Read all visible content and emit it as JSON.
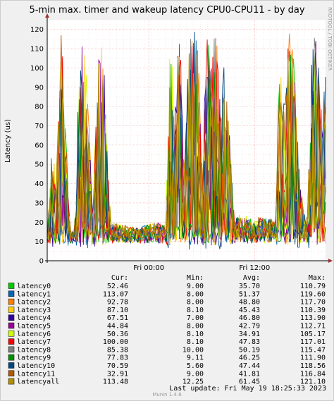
{
  "chart_data": {
    "type": "line",
    "title": "5-min max. timer and wakeup latency CPU0-CPU11 - by day",
    "ylabel": "Latency (us)",
    "ylim": [
      0,
      125
    ],
    "yticks": [
      0,
      10,
      20,
      30,
      40,
      50,
      60,
      70,
      80,
      90,
      100,
      110,
      120
    ],
    "xticks": [
      "Fri 00:00",
      "Fri 12:00"
    ],
    "grid": true,
    "watermark": "RRDTOOL / TOBI OETIKER",
    "legend_headers": {
      "cur": "Cur:",
      "min": "Min:",
      "avg": "Avg:",
      "max": "Max:"
    },
    "series": [
      {
        "name": "latency0",
        "color": "#00cc00",
        "cur": "52.46",
        "min": "9.00",
        "avg": "35.70",
        "max": "110.79"
      },
      {
        "name": "latency1",
        "color": "#0066b3",
        "cur": "113.07",
        "min": "8.00",
        "avg": "51.37",
        "max": "119.60"
      },
      {
        "name": "latency2",
        "color": "#ff8000",
        "cur": "92.78",
        "min": "8.00",
        "avg": "48.80",
        "max": "117.70"
      },
      {
        "name": "latency3",
        "color": "#ffcc00",
        "cur": "87.10",
        "min": "8.10",
        "avg": "45.43",
        "max": "110.39"
      },
      {
        "name": "latency4",
        "color": "#330099",
        "cur": "67.51",
        "min": "7.00",
        "avg": "46.80",
        "max": "113.90"
      },
      {
        "name": "latency5",
        "color": "#990099",
        "cur": "44.84",
        "min": "8.00",
        "avg": "42.79",
        "max": "112.71"
      },
      {
        "name": "latency6",
        "color": "#ccff00",
        "cur": "50.36",
        "min": "8.10",
        "avg": "34.91",
        "max": "105.17"
      },
      {
        "name": "latency7",
        "color": "#ff0000",
        "cur": "100.00",
        "min": "8.10",
        "avg": "47.83",
        "max": "117.01"
      },
      {
        "name": "latency8",
        "color": "#808080",
        "cur": "85.38",
        "min": "10.00",
        "avg": "50.19",
        "max": "115.47"
      },
      {
        "name": "latency9",
        "color": "#008f00",
        "cur": "77.83",
        "min": "9.11",
        "avg": "46.25",
        "max": "111.90"
      },
      {
        "name": "latency10",
        "color": "#00487d",
        "cur": "70.59",
        "min": "5.60",
        "avg": "47.44",
        "max": "118.56"
      },
      {
        "name": "latency11",
        "color": "#b35a00",
        "cur": "32.91",
        "min": "9.00",
        "avg": "41.81",
        "max": "116.84"
      },
      {
        "name": "latencyall",
        "color": "#b38f00",
        "cur": "113.48",
        "min": "12.25",
        "avg": "61.45",
        "max": "121.10"
      }
    ],
    "activity_pattern": [
      [
        0.0,
        12
      ],
      [
        0.02,
        60
      ],
      [
        0.04,
        35
      ],
      [
        0.06,
        118
      ],
      [
        0.08,
        65
      ],
      [
        0.1,
        15
      ],
      [
        0.12,
        12
      ],
      [
        0.14,
        95
      ],
      [
        0.16,
        110
      ],
      [
        0.18,
        70
      ],
      [
        0.2,
        30
      ],
      [
        0.22,
        90
      ],
      [
        0.24,
        118
      ],
      [
        0.26,
        60
      ],
      [
        0.28,
        18
      ],
      [
        0.32,
        17
      ],
      [
        0.36,
        16
      ],
      [
        0.4,
        15
      ],
      [
        0.44,
        17
      ],
      [
        0.48,
        18
      ],
      [
        0.52,
        17
      ],
      [
        0.54,
        110
      ],
      [
        0.56,
        70
      ],
      [
        0.58,
        118
      ],
      [
        0.6,
        40
      ],
      [
        0.62,
        100
      ],
      [
        0.64,
        116
      ],
      [
        0.66,
        105
      ],
      [
        0.68,
        50
      ],
      [
        0.7,
        108
      ],
      [
        0.72,
        95
      ],
      [
        0.74,
        115
      ],
      [
        0.76,
        70
      ],
      [
        0.78,
        100
      ],
      [
        0.8,
        60
      ],
      [
        0.82,
        20
      ],
      [
        0.84,
        22
      ],
      [
        0.86,
        20
      ],
      [
        0.88,
        22
      ],
      [
        0.9,
        18
      ],
      [
        0.92,
        20
      ],
      [
        0.94,
        22
      ],
      [
        0.96,
        20
      ],
      [
        0.98,
        20
      ],
      [
        1.0,
        18
      ],
      [
        1.02,
        110
      ],
      [
        1.04,
        70
      ],
      [
        1.06,
        112
      ],
      [
        1.08,
        95
      ],
      [
        1.1,
        60
      ],
      [
        1.12,
        25
      ],
      [
        1.14,
        18
      ],
      [
        1.16,
        100
      ],
      [
        1.18,
        112
      ],
      [
        1.2,
        70
      ],
      [
        1.22,
        90
      ]
    ]
  },
  "footer": {
    "last_update": "Last update:  Fri May 19 18:25:33 2023",
    "munin": "Munin 1.4.6"
  }
}
